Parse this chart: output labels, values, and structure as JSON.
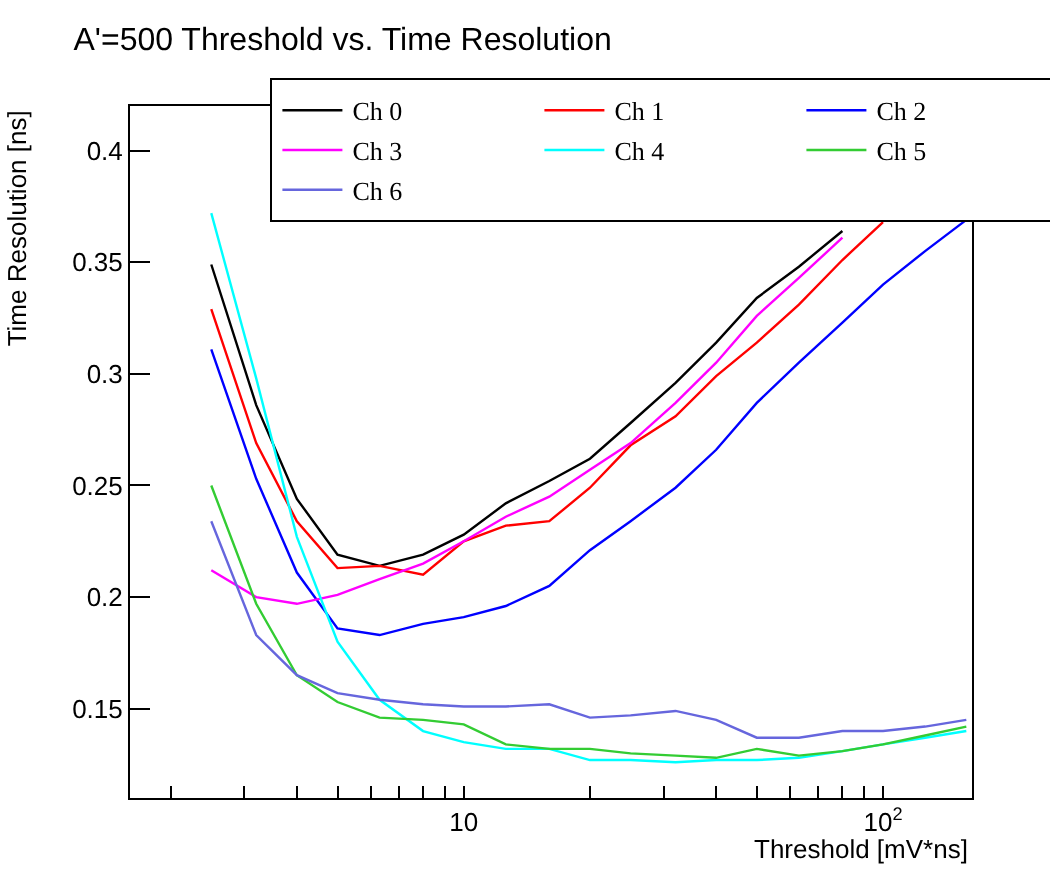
{
  "chart_data": {
    "type": "line",
    "title": "A'=500 Threshold vs. Time Resolution",
    "xlabel": "Threshold [mV*ns]",
    "ylabel": "Time Resolution [ns]",
    "x": [
      2.5,
      3.2,
      4,
      5,
      6.3,
      8,
      10,
      12.6,
      16,
      20,
      25,
      32,
      40,
      50,
      63,
      80,
      100,
      126,
      158
    ],
    "series": [
      {
        "name": "Ch 0",
        "color": "#000000",
        "values": [
          0.349,
          0.286,
          0.244,
          0.219,
          0.214,
          0.219,
          0.228,
          0.242,
          0.252,
          0.262,
          0.278,
          0.296,
          0.314,
          0.334,
          0.348,
          0.364,
          null,
          null,
          null
        ]
      },
      {
        "name": "Ch 1",
        "color": "#ff0000",
        "values": [
          0.329,
          0.269,
          0.234,
          0.213,
          0.214,
          0.21,
          0.225,
          0.232,
          0.234,
          0.249,
          0.268,
          0.281,
          0.299,
          0.314,
          0.331,
          0.351,
          0.368,
          null,
          null
        ]
      },
      {
        "name": "Ch 2",
        "color": "#0000ff",
        "values": [
          0.311,
          0.253,
          0.211,
          0.186,
          0.183,
          0.188,
          0.191,
          0.196,
          0.205,
          0.221,
          0.234,
          0.249,
          0.266,
          0.287,
          0.305,
          0.323,
          0.34,
          0.355,
          0.369
        ]
      },
      {
        "name": "Ch 3",
        "color": "#ff00ff",
        "values": [
          0.212,
          0.2,
          0.197,
          0.201,
          0.208,
          0.215,
          0.225,
          0.236,
          0.245,
          0.257,
          0.269,
          0.287,
          0.305,
          0.326,
          0.343,
          0.361,
          null,
          null,
          null
        ]
      },
      {
        "name": "Ch 4",
        "color": "#00ffff",
        "values": [
          0.372,
          0.298,
          0.227,
          0.18,
          0.154,
          0.14,
          0.135,
          0.132,
          0.132,
          0.127,
          0.127,
          0.126,
          0.127,
          0.127,
          0.128,
          0.131,
          0.134,
          0.137,
          0.14
        ]
      },
      {
        "name": "Ch 5",
        "color": "#33cc33",
        "values": [
          0.25,
          0.197,
          0.165,
          0.153,
          0.146,
          0.145,
          0.143,
          0.134,
          0.132,
          0.132,
          0.13,
          0.129,
          0.128,
          0.132,
          0.129,
          0.131,
          0.134,
          0.138,
          0.142
        ]
      },
      {
        "name": "Ch 6",
        "color": "#6666dd",
        "values": [
          0.234,
          0.183,
          0.165,
          0.157,
          0.154,
          0.152,
          0.151,
          0.151,
          0.152,
          0.146,
          0.147,
          0.149,
          0.145,
          0.137,
          0.137,
          0.14,
          0.14,
          0.142,
          0.145
        ]
      }
    ],
    "log": "x",
    "xlim": [
      1.6,
      163
    ],
    "ylim": [
      0.11,
      0.42
    ],
    "xticks": [
      {
        "value": 2,
        "label": null
      },
      {
        "value": 3,
        "label": null
      },
      {
        "value": 4,
        "label": null
      },
      {
        "value": 5,
        "label": null
      },
      {
        "value": 6,
        "label": null
      },
      {
        "value": 7,
        "label": null
      },
      {
        "value": 8,
        "label": null
      },
      {
        "value": 9,
        "label": null
      },
      10,
      {
        "value": 20,
        "label": null
      },
      {
        "value": 30,
        "label": null
      },
      {
        "value": 40,
        "label": null
      },
      {
        "value": 50,
        "label": null
      },
      {
        "value": 60,
        "label": null
      },
      {
        "value": 70,
        "label": null
      },
      {
        "value": 80,
        "label": null
      },
      {
        "value": 90,
        "label": null
      },
      {
        "value": 100,
        "label": "10$^{2}$"
      }
    ],
    "yticks": [
      0.15,
      0.2,
      0.25,
      0.3,
      0.35,
      0.4
    ],
    "grid": false,
    "legend": "top right"
  }
}
